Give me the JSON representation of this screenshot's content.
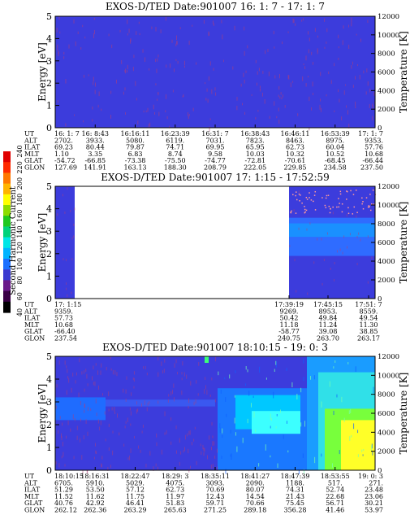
{
  "colorbar": {
    "label": "Second Harmonic Current",
    "ticks": [
      "40",
      "60",
      "80",
      "100",
      "120",
      "140",
      "160",
      "180",
      "200",
      "220",
      "240"
    ],
    "colors": [
      "#000000",
      "#3a0046",
      "#6a1a8a",
      "#3a3ad0",
      "#1a70ff",
      "#00b4ff",
      "#00e6e6",
      "#00d27a",
      "#1ec81e",
      "#8cdc00",
      "#ffff00",
      "#ffb400",
      "#ff7800",
      "#ff2a00",
      "#e00000"
    ]
  },
  "colors": {
    "background": "#3c3cdc",
    "stripe": "#b43c78",
    "cyan": "#3cffff",
    "green": "#78ff3c",
    "yellow": "#ffff28"
  },
  "row_labels": [
    "UT",
    "ALT",
    "ILAT",
    "MLT",
    "GLAT",
    "GLON"
  ],
  "chart_data": [
    {
      "type": "heatmap",
      "title": "EXOS-D/TED   Date:901007  16: 1: 7 - 17: 1: 7",
      "ylabel": "Energy [eV]",
      "y2label": "Temperature [K]",
      "ylim": [
        0,
        5
      ],
      "y2lim": [
        0,
        12000
      ],
      "yticks": [
        "0",
        "1",
        "2",
        "3",
        "4",
        "5"
      ],
      "y2ticks": [
        "0",
        "2000",
        "4000",
        "6000",
        "8000",
        "10000",
        "12000"
      ],
      "columns": [
        {
          "UT": "16: 1: 7",
          "ALT": "2702.",
          "ILAT": "69.23",
          "MLT": "1.10",
          "GLAT": "-54.72",
          "GLON": "127.69"
        },
        {
          "UT": "16: 8:43",
          "ALT": "3933.",
          "ILAT": "80.44",
          "MLT": "3.35",
          "GLAT": "-66.85",
          "GLON": "141.91"
        },
        {
          "UT": "16:16:11",
          "ALT": "5080.",
          "ILAT": "79.87",
          "MLT": "6.83",
          "GLAT": "-73.38",
          "GLON": "163.13"
        },
        {
          "UT": "16:23:39",
          "ALT": "6119.",
          "ILAT": "74.71",
          "MLT": "8.74",
          "GLAT": "-75.50",
          "GLON": "188.30"
        },
        {
          "UT": "16:31: 7",
          "ALT": "7031.",
          "ILAT": "69.95",
          "MLT": "9.58",
          "GLAT": "-74.77",
          "GLON": "208.79"
        },
        {
          "UT": "16:38:43",
          "ALT": "7823.",
          "ILAT": "65.95",
          "MLT": "10.03",
          "GLAT": "-72.81",
          "GLON": "222.05"
        },
        {
          "UT": "16:46:11",
          "ALT": "8463.",
          "ILAT": "62.73",
          "MLT": "10.32",
          "GLAT": "-70.61",
          "GLON": "229.85"
        },
        {
          "UT": "16:53:39",
          "ALT": "8975.",
          "ILAT": "60.04",
          "MLT": "10.52",
          "GLAT": "-68.45",
          "GLON": "234.58"
        },
        {
          "UT": "17: 1: 7",
          "ALT": "9353.",
          "ILAT": "57.76",
          "MLT": "10.68",
          "GLAT": "-66.44",
          "GLON": "237.50"
        }
      ]
    },
    {
      "type": "heatmap",
      "title": "EXOS-D/TED   Date:901007  17: 1:15 - 17:52:59",
      "ylabel": "Energy [eV]",
      "y2label": "Temperature [K]",
      "ylim": [
        0,
        5
      ],
      "y2lim": [
        0,
        12000
      ],
      "yticks": [
        "0",
        "1",
        "2",
        "3",
        "4",
        "5"
      ],
      "y2ticks": [
        "0",
        "2000",
        "4000",
        "6000",
        "8000",
        "10000",
        "12000"
      ],
      "columns": [
        {
          "UT": "17: 1:15",
          "ALT": "9359.",
          "ILAT": "57.73",
          "MLT": "10.68",
          "GLAT": "-66.40",
          "GLON": "237.54"
        },
        {
          "UT": "17:39:19",
          "ALT": "9269.",
          "ILAT": "50.42",
          "MLT": "11.18",
          "GLAT": "-58.77",
          "GLON": "240.75"
        },
        {
          "UT": "17:45:15",
          "ALT": "8953.",
          "ILAT": "49.84",
          "MLT": "11.24",
          "GLAT": "39.08",
          "GLON": "263.70"
        },
        {
          "UT": "17:51: 7",
          "ALT": "8559.",
          "ILAT": "49.54",
          "MLT": "11.30",
          "GLAT": "38.85",
          "GLON": "263.17"
        }
      ]
    },
    {
      "type": "heatmap",
      "title": "EXOS-D/TED   Date:901007  18:10:15 - 19: 0: 3",
      "ylabel": "Energy [eV]",
      "y2label": "Temperature [K]",
      "ylim": [
        0,
        5
      ],
      "y2lim": [
        0,
        12000
      ],
      "yticks": [
        "0",
        "1",
        "2",
        "3",
        "4",
        "5"
      ],
      "y2ticks": [
        "0",
        "2000",
        "4000",
        "6000",
        "8000",
        "10000",
        "12000"
      ],
      "columns": [
        {
          "UT": "18:10:15",
          "ALT": "6705.",
          "ILAT": "51.29",
          "MLT": "11.52",
          "GLAT": "40.76",
          "GLON": "262.12"
        },
        {
          "UT": "18:16:31",
          "ALT": "5910.",
          "ILAT": "53.50",
          "MLT": "11.62",
          "GLAT": "42.92",
          "GLON": "262.36"
        },
        {
          "UT": "18:22:47",
          "ALT": "5029.",
          "ILAT": "57.12",
          "MLT": "11.75",
          "GLAT": "46.41",
          "GLON": "263.29"
        },
        {
          "UT": "18:29: 3",
          "ALT": "4075.",
          "ILAT": "62.73",
          "MLT": "11.97",
          "GLAT": "51.83",
          "GLON": "265.63"
        },
        {
          "UT": "18:35:11",
          "ALT": "3093.",
          "ILAT": "70.69",
          "MLT": "12.43",
          "GLAT": "59.71",
          "GLON": "271.25"
        },
        {
          "UT": "18:41:27",
          "ALT": "2090.",
          "ILAT": "80.07",
          "MLT": "14.54",
          "GLAT": "70.66",
          "GLON": "289.18"
        },
        {
          "UT": "18:47:39",
          "ALT": "1188.",
          "ILAT": "74.31",
          "MLT": "21.43",
          "GLAT": "75.45",
          "GLON": "356.28"
        },
        {
          "UT": "18:53:55",
          "ALT": "517.",
          "ILAT": "52.74",
          "MLT": "22.68",
          "GLAT": "56.71",
          "GLON": "41.46"
        },
        {
          "UT": "19: 0: 3",
          "ALT": "271.",
          "ILAT": "23.48",
          "MLT": "23.06",
          "GLAT": "30.21",
          "GLON": "53.97"
        }
      ]
    }
  ]
}
